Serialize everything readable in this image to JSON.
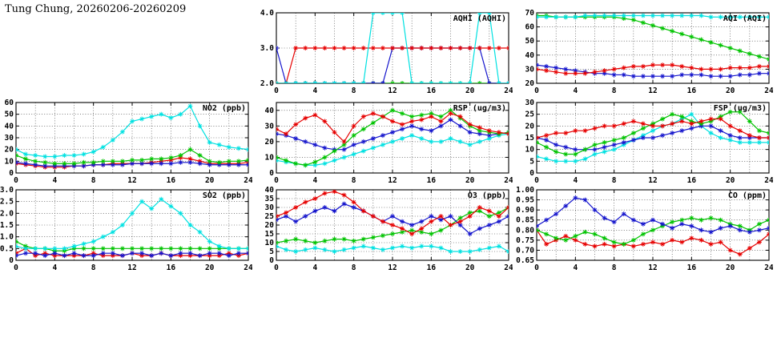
{
  "page_title": "Tung Chung, 20260206-20260209",
  "colors": {
    "red": "#e60000",
    "green": "#00c300",
    "blue": "#1414cc",
    "cyan": "#00e1e1"
  },
  "chart_data": [
    {
      "id": "aqhi",
      "type": "line",
      "title": "AQHI (AQHI)",
      "xlim": [
        0,
        24
      ],
      "xticks": [
        0,
        4,
        8,
        12,
        16,
        20,
        24
      ],
      "ylim": [
        2,
        4
      ],
      "yticks": [
        2,
        3,
        4
      ],
      "ydecimals": 1,
      "series": [
        {
          "color": "green",
          "values": [
            2,
            2,
            2,
            2,
            2,
            2,
            2,
            2,
            2,
            2,
            2,
            2,
            2,
            2,
            2,
            2,
            2,
            2,
            2,
            2,
            2,
            2,
            2,
            2,
            2
          ]
        },
        {
          "color": "blue",
          "values": [
            3,
            2,
            2,
            2,
            2,
            2,
            2,
            2,
            2,
            2,
            2,
            2,
            3,
            3,
            3,
            3,
            3,
            3,
            3,
            3,
            3,
            3,
            2,
            2,
            2
          ]
        },
        {
          "color": "red",
          "values": [
            2,
            2,
            3,
            3,
            3,
            3,
            3,
            3,
            3,
            3,
            3,
            3,
            3,
            3,
            3,
            3,
            3,
            3,
            3,
            3,
            3,
            3,
            3,
            3,
            3
          ]
        },
        {
          "color": "cyan",
          "values": [
            2,
            2,
            2,
            2,
            2,
            2,
            2,
            2,
            2,
            2,
            4,
            4,
            4,
            4,
            2,
            2,
            2,
            2,
            2,
            2,
            2,
            4,
            4,
            2,
            2
          ]
        }
      ]
    },
    {
      "id": "aqi",
      "type": "line",
      "title": "AQI (AQI)",
      "xlim": [
        0,
        24
      ],
      "xticks": [
        0,
        4,
        8,
        12,
        16,
        20,
        24
      ],
      "ylim": [
        20,
        70
      ],
      "yticks": [
        20,
        30,
        40,
        50,
        60,
        70
      ],
      "ydecimals": 0,
      "series": [
        {
          "color": "green",
          "values": [
            68,
            68,
            67,
            67,
            67,
            67,
            67,
            67,
            67,
            66,
            65,
            63,
            61,
            59,
            57,
            55,
            53,
            51,
            49,
            47,
            45,
            43,
            41,
            39,
            37
          ]
        },
        {
          "color": "cyan",
          "values": [
            67,
            67,
            67,
            67,
            67,
            68,
            68,
            68,
            68,
            68,
            68,
            68,
            68,
            68,
            68,
            68,
            68,
            68,
            67,
            67,
            67,
            67,
            67,
            67,
            67
          ]
        },
        {
          "color": "blue",
          "values": [
            33,
            32,
            31,
            30,
            29,
            28,
            27,
            27,
            26,
            26,
            25,
            25,
            25,
            25,
            25,
            26,
            26,
            26,
            25,
            25,
            25,
            26,
            26,
            27,
            27
          ]
        },
        {
          "color": "red",
          "values": [
            30,
            29,
            28,
            27,
            27,
            27,
            28,
            29,
            30,
            31,
            32,
            32,
            33,
            33,
            33,
            32,
            31,
            30,
            30,
            30,
            31,
            31,
            31,
            32,
            32
          ]
        }
      ]
    },
    {
      "id": "no2",
      "type": "line",
      "title": "NO2 (ppb)",
      "xlim": [
        0,
        24
      ],
      "xticks": [
        0,
        4,
        8,
        12,
        16,
        20,
        24
      ],
      "ylim": [
        0,
        60
      ],
      "yticks": [
        0,
        10,
        20,
        30,
        40,
        50,
        60
      ],
      "ydecimals": 0,
      "series": [
        {
          "color": "red",
          "values": [
            8,
            7,
            6,
            5,
            5,
            5,
            6,
            6,
            7,
            7,
            8,
            8,
            8,
            8,
            9,
            10,
            11,
            13,
            12,
            10,
            8,
            8,
            8,
            8,
            9
          ]
        },
        {
          "color": "blue",
          "values": [
            9,
            8,
            7,
            6,
            6,
            6,
            6,
            6,
            7,
            7,
            7,
            7,
            8,
            8,
            8,
            8,
            8,
            9,
            9,
            8,
            7,
            7,
            7,
            7,
            7
          ]
        },
        {
          "color": "green",
          "values": [
            15,
            12,
            10,
            9,
            8,
            8,
            8,
            9,
            9,
            10,
            10,
            10,
            11,
            11,
            12,
            12,
            13,
            15,
            20,
            15,
            10,
            9,
            10,
            10,
            11
          ]
        },
        {
          "color": "cyan",
          "values": [
            20,
            16,
            15,
            14,
            14,
            15,
            15,
            16,
            18,
            22,
            28,
            35,
            44,
            46,
            48,
            50,
            47,
            50,
            57,
            40,
            26,
            24,
            22,
            21,
            20
          ]
        }
      ]
    },
    {
      "id": "rsp",
      "type": "line",
      "title": "RSP (ug/m3)",
      "xlim": [
        0,
        24
      ],
      "xticks": [
        0,
        4,
        8,
        12,
        16,
        20,
        24
      ],
      "ylim": [
        0,
        45
      ],
      "yticks": [
        0,
        10,
        20,
        30,
        40
      ],
      "ydecimals": 0,
      "series": [
        {
          "color": "cyan",
          "values": [
            8,
            7,
            6,
            5,
            5,
            6,
            8,
            10,
            12,
            14,
            16,
            18,
            20,
            22,
            24,
            22,
            20,
            20,
            22,
            20,
            18,
            20,
            22,
            24,
            25
          ]
        },
        {
          "color": "blue",
          "values": [
            25,
            24,
            22,
            20,
            18,
            16,
            15,
            15,
            18,
            20,
            22,
            24,
            26,
            28,
            30,
            28,
            27,
            30,
            34,
            30,
            26,
            25,
            24,
            25,
            26
          ]
        },
        {
          "color": "green",
          "values": [
            10,
            8,
            6,
            5,
            7,
            10,
            14,
            18,
            24,
            28,
            32,
            36,
            40,
            38,
            36,
            37,
            38,
            36,
            40,
            35,
            30,
            27,
            26,
            25,
            26
          ]
        },
        {
          "color": "red",
          "values": [
            28,
            25,
            31,
            35,
            37,
            33,
            26,
            20,
            30,
            36,
            38,
            36,
            33,
            31,
            33,
            34,
            36,
            33,
            38,
            36,
            31,
            29,
            27,
            26,
            25
          ]
        }
      ]
    },
    {
      "id": "fsp",
      "type": "line",
      "title": "FSP (ug/m3)",
      "xlim": [
        0,
        24
      ],
      "xticks": [
        0,
        4,
        8,
        12,
        16,
        20,
        24
      ],
      "ylim": [
        0,
        30
      ],
      "yticks": [
        0,
        5,
        10,
        15,
        20,
        25,
        30
      ],
      "ydecimals": 0,
      "series": [
        {
          "color": "cyan",
          "values": [
            7,
            6,
            5,
            5,
            5,
            6,
            8,
            9,
            10,
            12,
            14,
            16,
            18,
            20,
            21,
            23,
            25,
            20,
            17,
            15,
            14,
            13,
            13,
            13,
            13
          ]
        },
        {
          "color": "blue",
          "values": [
            15,
            14,
            12,
            11,
            10,
            10,
            10,
            11,
            12,
            13,
            14,
            15,
            15,
            16,
            17,
            18,
            19,
            20,
            20,
            18,
            16,
            15,
            15,
            15,
            15
          ]
        },
        {
          "color": "green",
          "values": [
            13,
            11,
            9,
            8,
            8,
            10,
            12,
            13,
            14,
            15,
            17,
            19,
            21,
            23,
            25,
            24,
            22,
            21,
            22,
            24,
            26,
            26,
            22,
            18,
            17
          ]
        },
        {
          "color": "red",
          "values": [
            15,
            16,
            17,
            17,
            18,
            18,
            19,
            20,
            20,
            21,
            22,
            21,
            20,
            20,
            21,
            22,
            21,
            22,
            23,
            23,
            20,
            18,
            16,
            15,
            15
          ]
        }
      ]
    },
    {
      "id": "so2",
      "type": "line",
      "title": "SO2 (ppb)",
      "xlim": [
        0,
        24
      ],
      "xticks": [
        0,
        4,
        8,
        12,
        16,
        20,
        24
      ],
      "ylim": [
        0,
        3.0
      ],
      "yticks": [
        0,
        0.5,
        1.0,
        1.5,
        2.0,
        2.5,
        3.0
      ],
      "ydecimals": 1,
      "series": [
        {
          "color": "green",
          "values": [
            0.8,
            0.6,
            0.5,
            0.5,
            0.4,
            0.4,
            0.5,
            0.5,
            0.5,
            0.5,
            0.5,
            0.5,
            0.5,
            0.5,
            0.5,
            0.5,
            0.5,
            0.5,
            0.5,
            0.5,
            0.5,
            0.5,
            0.5,
            0.5,
            0.5
          ]
        },
        {
          "color": "red",
          "values": [
            0.3,
            0.5,
            0.2,
            0.3,
            0.2,
            0.2,
            0.2,
            0.2,
            0.3,
            0.2,
            0.2,
            0.2,
            0.3,
            0.2,
            0.2,
            0.3,
            0.2,
            0.2,
            0.2,
            0.2,
            0.2,
            0.2,
            0.3,
            0.2,
            0.3
          ]
        },
        {
          "color": "blue",
          "values": [
            0.2,
            0.3,
            0.3,
            0.2,
            0.3,
            0.2,
            0.3,
            0.2,
            0.2,
            0.3,
            0.3,
            0.2,
            0.3,
            0.3,
            0.2,
            0.3,
            0.2,
            0.3,
            0.3,
            0.2,
            0.3,
            0.3,
            0.2,
            0.3,
            0.3
          ]
        },
        {
          "color": "cyan",
          "values": [
            0.6,
            0.5,
            0.5,
            0.5,
            0.5,
            0.5,
            0.6,
            0.7,
            0.8,
            1.0,
            1.2,
            1.5,
            2.0,
            2.5,
            2.2,
            2.6,
            2.3,
            2.0,
            1.5,
            1.2,
            0.8,
            0.6,
            0.5,
            0.5,
            0.5
          ]
        }
      ]
    },
    {
      "id": "o3",
      "type": "line",
      "title": "O3 (ppb)",
      "xlim": [
        0,
        24
      ],
      "xticks": [
        0,
        4,
        8,
        12,
        16,
        20,
        24
      ],
      "ylim": [
        0,
        40
      ],
      "yticks": [
        0,
        5,
        10,
        15,
        20,
        25,
        30,
        35,
        40
      ],
      "ydecimals": 0,
      "series": [
        {
          "color": "cyan",
          "values": [
            8,
            6,
            5,
            6,
            7,
            6,
            5,
            6,
            7,
            8,
            7,
            6,
            7,
            8,
            7,
            8,
            8,
            7,
            5,
            5,
            5,
            6,
            7,
            8,
            5
          ]
        },
        {
          "color": "green",
          "values": [
            10,
            11,
            12,
            11,
            10,
            11,
            12,
            12,
            11,
            12,
            13,
            14,
            15,
            16,
            17,
            16,
            15,
            17,
            20,
            24,
            27,
            28,
            25,
            27,
            30
          ]
        },
        {
          "color": "blue",
          "values": [
            23,
            25,
            22,
            25,
            28,
            30,
            28,
            32,
            30,
            28,
            25,
            22,
            25,
            22,
            20,
            22,
            25,
            23,
            25,
            20,
            15,
            18,
            20,
            22,
            25
          ]
        },
        {
          "color": "red",
          "values": [
            25,
            27,
            30,
            33,
            35,
            38,
            39,
            37,
            33,
            28,
            25,
            22,
            20,
            18,
            15,
            18,
            22,
            25,
            20,
            22,
            25,
            30,
            28,
            25,
            30
          ]
        }
      ]
    },
    {
      "id": "co",
      "type": "line",
      "title": "CO (ppm)",
      "xlim": [
        0,
        24
      ],
      "xticks": [
        0,
        4,
        8,
        12,
        16,
        20,
        24
      ],
      "ylim": [
        0.65,
        1.0
      ],
      "yticks": [
        0.65,
        0.7,
        0.75,
        0.8,
        0.85,
        0.9,
        0.95,
        1.0
      ],
      "ydecimals": 2,
      "series": [
        {
          "color": "red",
          "values": [
            0.8,
            0.73,
            0.75,
            0.77,
            0.75,
            0.73,
            0.72,
            0.73,
            0.72,
            0.73,
            0.72,
            0.73,
            0.74,
            0.73,
            0.75,
            0.74,
            0.76,
            0.75,
            0.73,
            0.74,
            0.7,
            0.68,
            0.71,
            0.74,
            0.78
          ]
        },
        {
          "color": "green",
          "values": [
            0.8,
            0.78,
            0.76,
            0.75,
            0.77,
            0.79,
            0.78,
            0.76,
            0.74,
            0.73,
            0.75,
            0.78,
            0.8,
            0.82,
            0.84,
            0.85,
            0.86,
            0.85,
            0.86,
            0.85,
            0.83,
            0.82,
            0.8,
            0.83,
            0.85
          ]
        },
        {
          "color": "blue",
          "values": [
            0.82,
            0.85,
            0.88,
            0.92,
            0.96,
            0.95,
            0.9,
            0.86,
            0.84,
            0.88,
            0.85,
            0.83,
            0.85,
            0.83,
            0.81,
            0.83,
            0.82,
            0.8,
            0.79,
            0.81,
            0.82,
            0.8,
            0.79,
            0.8,
            0.81
          ]
        }
      ]
    }
  ]
}
